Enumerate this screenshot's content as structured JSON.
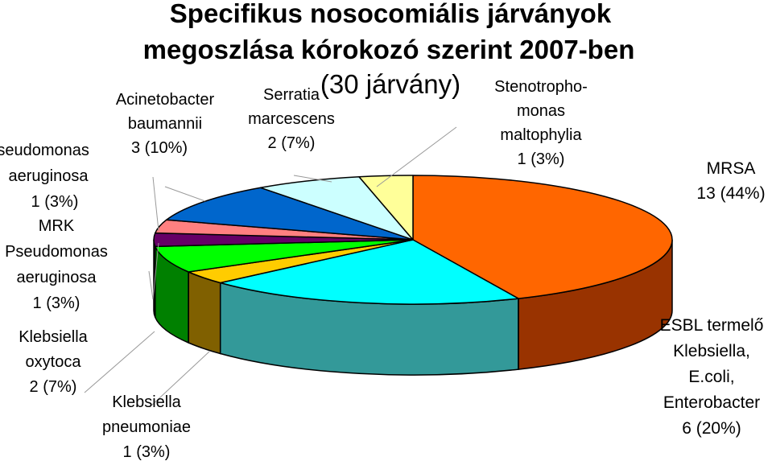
{
  "chart_data": {
    "type": "pie",
    "title_lines": [
      "Specifikus nosocomiális járványok",
      "megoszlása kórokozó szerint 2007-ben",
      "(30 járvány)"
    ],
    "three_d": true,
    "legend": "none",
    "slices": [
      {
        "name_lines": [
          "MRSA"
        ],
        "value_text": "13 (44%)",
        "value": 13,
        "percent": 44,
        "color": "#ff6600",
        "side_color": "#993300"
      },
      {
        "name_lines": [
          "ESBL termelő",
          "Klebsiella,",
          "E.coli,",
          "Enterobacter"
        ],
        "value_text": "6 (20%)",
        "value": 6,
        "percent": 20,
        "color": "#00ffff",
        "side_color": "#339999"
      },
      {
        "name_lines": [
          "Klebsiella",
          "pneumoniae"
        ],
        "value_text": "1 (3%)",
        "value": 1,
        "percent": 3,
        "color": "#ffcc00",
        "side_color": "#806000"
      },
      {
        "name_lines": [
          "Klebsiella",
          "oxytoca"
        ],
        "value_text": "2 (7%)",
        "value": 2,
        "percent": 7,
        "color": "#00ff00",
        "side_color": "#008000"
      },
      {
        "name_lines": [
          "MRK",
          "Pseudomonas",
          "aeruginosa"
        ],
        "value_text": "1 (3%)",
        "value": 1,
        "percent": 3,
        "color": "#660066",
        "side_color": "#330033"
      },
      {
        "name_lines": [
          "Pseudomonas",
          "aeruginosa"
        ],
        "value_text": "1 (3%)",
        "value": 1,
        "percent": 3,
        "color": "#ff8080",
        "side_color": "#804040"
      },
      {
        "name_lines": [
          "Acinetobacter",
          "baumannii"
        ],
        "value_text": "3 (10%)",
        "value": 3,
        "percent": 10,
        "color": "#0066cc",
        "side_color": "#003366"
      },
      {
        "name_lines": [
          "Serratia",
          "marcescens"
        ],
        "value_text": "2 (7%)",
        "value": 2,
        "percent": 7,
        "color": "#ccffff",
        "side_color": "#668080"
      },
      {
        "name_lines": [
          "Stenotropho-",
          "monas",
          "maltophylia"
        ],
        "value_text": "1 (3%)",
        "value": 1,
        "percent": 3,
        "color": "#ffff99",
        "side_color": "#80804d"
      }
    ]
  }
}
